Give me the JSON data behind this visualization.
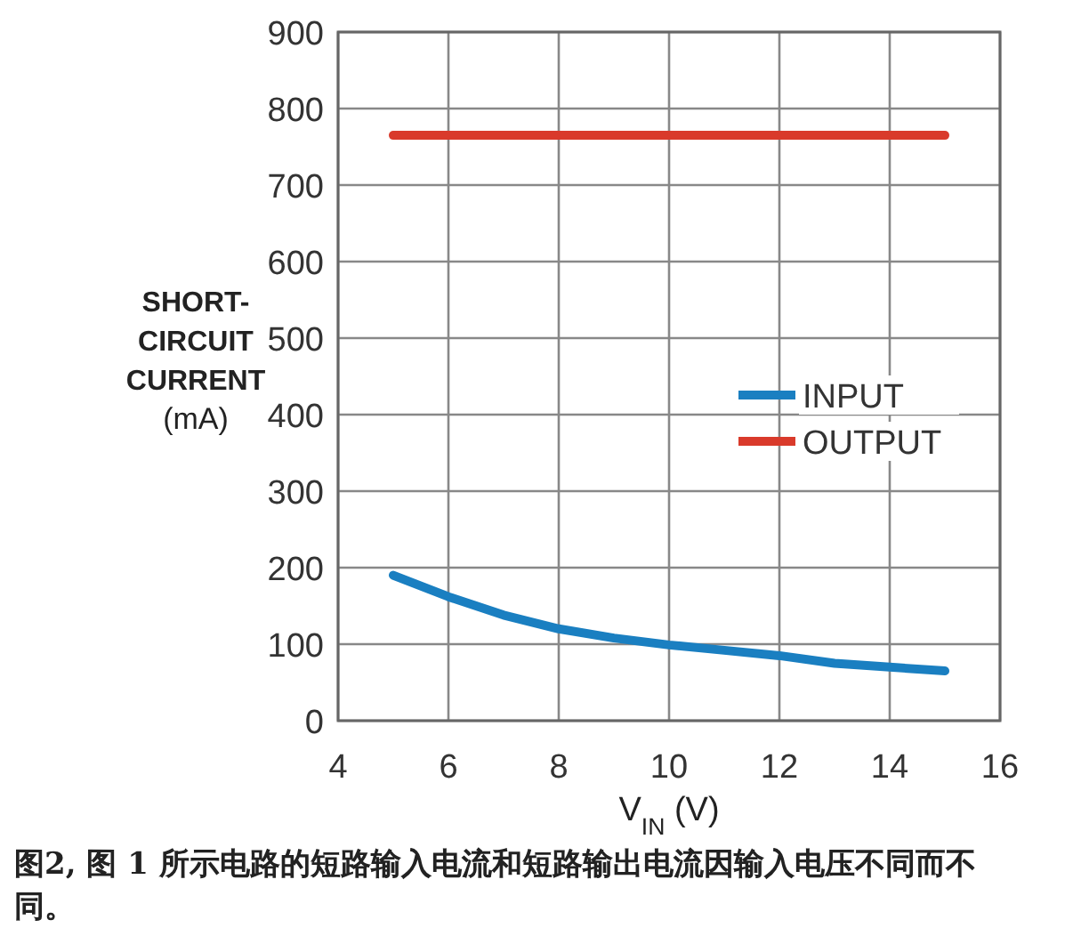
{
  "chart_data": {
    "type": "line",
    "xlabel": "V$_{IN}$ (V)",
    "ylabel": "SHORT-\nCIRCUIT\nCURRENT\n(mA)",
    "xlim": [
      4,
      16
    ],
    "xticks": [
      4,
      6,
      8,
      10,
      12,
      14,
      16
    ],
    "ylim": [
      0,
      900
    ],
    "yticks": [
      0,
      100,
      200,
      300,
      400,
      500,
      600,
      700,
      800,
      900
    ],
    "grid": true,
    "legend": "right",
    "marker": "none",
    "line_style": "solid",
    "series": [
      {
        "name": "INPUT",
        "color": "#1a7fc1",
        "x": [
          5,
          6,
          7,
          8,
          9,
          10,
          11,
          12,
          13,
          14,
          15
        ],
        "values": [
          190,
          162,
          138,
          120,
          108,
          99,
          92,
          85,
          75,
          70,
          65
        ]
      },
      {
        "name": "OUTPUT",
        "color": "#d93a2b",
        "x": [
          5,
          15
        ],
        "values": [
          765,
          765
        ]
      }
    ],
    "annotations": [
      "图2, 图 1 所示电路的短路输入电流和短路输出电流因输入电压不同而不同。"
    ]
  }
}
